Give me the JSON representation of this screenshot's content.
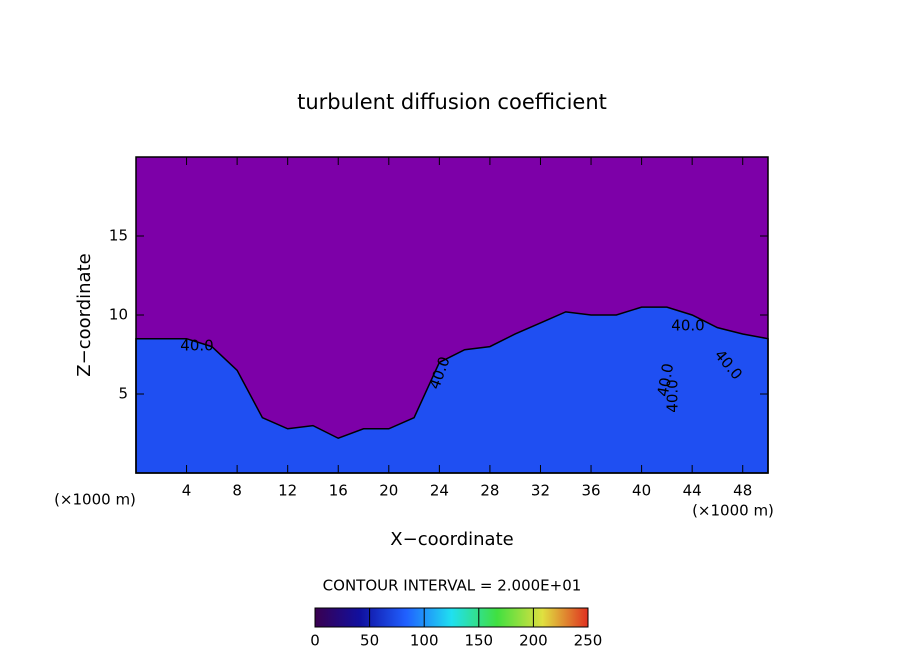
{
  "chart_data": {
    "type": "area",
    "title": "turbulent diffusion coefficient",
    "xlabel": "X−coordinate",
    "ylabel": "Z−coordinate",
    "x_unit": "(×1000 m)",
    "y_unit": "(×1000 m)",
    "x": [
      0,
      2,
      4,
      6,
      8,
      10,
      12,
      14,
      16,
      18,
      20,
      22,
      24,
      26,
      28,
      30,
      32,
      34,
      36,
      38,
      40,
      42,
      44,
      46,
      48,
      50
    ],
    "values": [
      8.5,
      8.5,
      8.5,
      8,
      6.5,
      3.5,
      2.8,
      3,
      2.2,
      2.8,
      2.8,
      3.5,
      7,
      7.8,
      8,
      8.8,
      9.5,
      10.2,
      10,
      10,
      10.5,
      10.5,
      10,
      9.2,
      8.8,
      8.5
    ],
    "color": "#1f4ff2",
    "background_color": "#7d00a8",
    "xlim": [
      0,
      50
    ],
    "ylim": [
      0,
      20
    ],
    "xticks": [
      4,
      8,
      12,
      16,
      20,
      24,
      28,
      32,
      36,
      40,
      44,
      48
    ],
    "yticks": [
      5,
      10,
      15
    ],
    "contour_labels": [
      "40.0",
      "40.0",
      "40.0",
      "40.0",
      "40.0",
      "40.0"
    ],
    "contour_interval": "CONTOUR INTERVAL = 2.000E+01",
    "colorbar": {
      "clim": [
        0,
        250
      ],
      "ticks": [
        0,
        50,
        100,
        150,
        200,
        250
      ],
      "colors": [
        "#3a0050",
        "#1010a0",
        "#2060ff",
        "#20e0f0",
        "#40e040",
        "#e0e040",
        "#e03020"
      ]
    }
  }
}
